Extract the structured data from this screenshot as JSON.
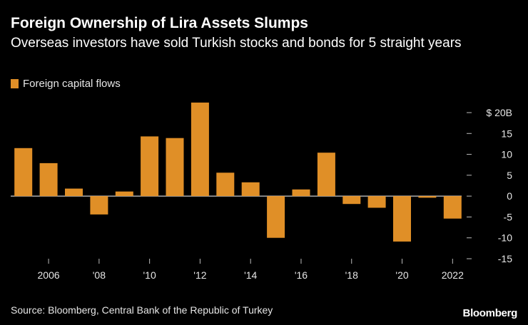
{
  "chart_data": {
    "type": "bar",
    "title": "Foreign Ownership of Lira Assets Slumps",
    "subtitle": "Overseas investors have sold Turkish stocks and bonds for 5 straight years",
    "series": [
      {
        "name": "Foreign capital flows",
        "color": "#e08f27",
        "x": [
          2005,
          2006,
          2007,
          2008,
          2009,
          2010,
          2011,
          2012,
          2013,
          2014,
          2015,
          2016,
          2017,
          2018,
          2019,
          2020,
          2021,
          2022
        ],
        "values": [
          11.5,
          7.9,
          1.8,
          -4.4,
          1.1,
          14.3,
          13.9,
          22.4,
          5.6,
          3.3,
          -10.0,
          1.6,
          10.4,
          -1.9,
          -2.8,
          -10.9,
          -0.4,
          -5.4
        ]
      }
    ],
    "xaxis": {
      "ticks": [
        2006,
        2008,
        2010,
        2012,
        2014,
        2016,
        2018,
        2020,
        2022
      ],
      "tick_labels": [
        "2006",
        "'08",
        "'10",
        "'12",
        "'14",
        "'16",
        "'18",
        "'20",
        "2022"
      ]
    },
    "yaxis": {
      "ylim": [
        -15,
        20
      ],
      "ticks": [
        20,
        15,
        10,
        5,
        0,
        -5,
        -10,
        -15
      ],
      "tick_labels": [
        "$ 20B",
        "15",
        "10",
        "5",
        "0",
        "-5",
        "-10",
        "-15"
      ],
      "position": "right"
    },
    "legend": {
      "label": "Foreign capital flows",
      "position": "top-left"
    },
    "source": "Source: Bloomberg, Central Bank of the Republic of Turkey",
    "brand": "Bloomberg"
  }
}
